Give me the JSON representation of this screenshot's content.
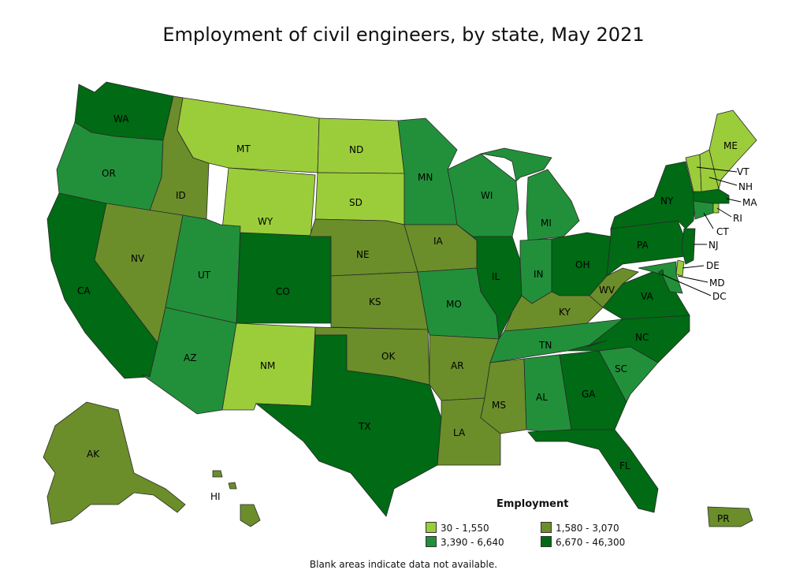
{
  "title": "Employment of civil engineers, by state, May 2021",
  "footnote": "Blank areas indicate data not available.",
  "legend": {
    "title": "Employment",
    "items": [
      {
        "label": "30 - 1,550",
        "color": "#9bcd3b"
      },
      {
        "label": "1,580 - 3,070",
        "color": "#6b8e2a"
      },
      {
        "label": "3,390 - 6,640",
        "color": "#22903a"
      },
      {
        "label": "6,670 - 46,300",
        "color": "#006a14"
      }
    ]
  },
  "states": [
    {
      "abbr": "WA",
      "tier": 3
    },
    {
      "abbr": "OR",
      "tier": 2
    },
    {
      "abbr": "CA",
      "tier": 3
    },
    {
      "abbr": "ID",
      "tier": 1
    },
    {
      "abbr": "NV",
      "tier": 1
    },
    {
      "abbr": "MT",
      "tier": 0
    },
    {
      "abbr": "WY",
      "tier": 0
    },
    {
      "abbr": "UT",
      "tier": 2
    },
    {
      "abbr": "AZ",
      "tier": 2
    },
    {
      "abbr": "CO",
      "tier": 3
    },
    {
      "abbr": "NM",
      "tier": 0
    },
    {
      "abbr": "ND",
      "tier": 0
    },
    {
      "abbr": "SD",
      "tier": 0
    },
    {
      "abbr": "NE",
      "tier": 1
    },
    {
      "abbr": "KS",
      "tier": 1
    },
    {
      "abbr": "OK",
      "tier": 1
    },
    {
      "abbr": "TX",
      "tier": 3
    },
    {
      "abbr": "MN",
      "tier": 2
    },
    {
      "abbr": "IA",
      "tier": 1
    },
    {
      "abbr": "MO",
      "tier": 2
    },
    {
      "abbr": "AR",
      "tier": 1
    },
    {
      "abbr": "LA",
      "tier": 1
    },
    {
      "abbr": "WI",
      "tier": 2
    },
    {
      "abbr": "IL",
      "tier": 3
    },
    {
      "abbr": "MI",
      "tier": 2
    },
    {
      "abbr": "IN",
      "tier": 2
    },
    {
      "abbr": "OH",
      "tier": 3
    },
    {
      "abbr": "KY",
      "tier": 1
    },
    {
      "abbr": "TN",
      "tier": 2
    },
    {
      "abbr": "MS",
      "tier": 1
    },
    {
      "abbr": "AL",
      "tier": 2
    },
    {
      "abbr": "GA",
      "tier": 3
    },
    {
      "abbr": "FL",
      "tier": 3
    },
    {
      "abbr": "SC",
      "tier": 2
    },
    {
      "abbr": "NC",
      "tier": 3
    },
    {
      "abbr": "VA",
      "tier": 3
    },
    {
      "abbr": "WV",
      "tier": 1
    },
    {
      "abbr": "PA",
      "tier": 3
    },
    {
      "abbr": "NY",
      "tier": 3
    },
    {
      "abbr": "ME",
      "tier": 0
    },
    {
      "abbr": "VT",
      "tier": 0
    },
    {
      "abbr": "NH",
      "tier": 0
    },
    {
      "abbr": "MA",
      "tier": 3
    },
    {
      "abbr": "RI",
      "tier": 0
    },
    {
      "abbr": "CT",
      "tier": 2
    },
    {
      "abbr": "NJ",
      "tier": 3
    },
    {
      "abbr": "DE",
      "tier": 0
    },
    {
      "abbr": "MD",
      "tier": 2
    },
    {
      "abbr": "DC",
      "tier": 3
    },
    {
      "abbr": "AK",
      "tier": 1
    },
    {
      "abbr": "HI",
      "tier": 1
    },
    {
      "abbr": "PR",
      "tier": 1
    }
  ]
}
